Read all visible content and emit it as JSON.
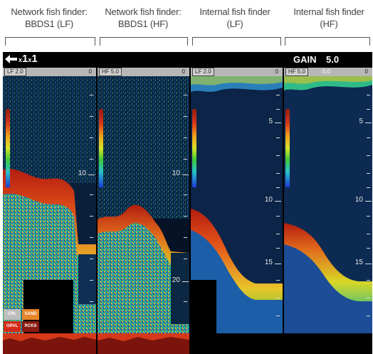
{
  "captions": [
    {
      "line1": "Network fish finder:",
      "line2": "BBDS1 (LF)"
    },
    {
      "line1": "Network fish finder:",
      "line2": "BBDS1 (HF)"
    },
    {
      "line1": "Internal fish finder",
      "line2": "(LF)"
    },
    {
      "line1": "Internal fish finder",
      "line2": "(HF)"
    }
  ],
  "topbar": {
    "zoom_main": "1",
    "zoom_sub": "x",
    "zoom_level": "1",
    "gain_label": "GAIN",
    "gain_value": "5.0",
    "back_icon": "back-arrow-icon"
  },
  "panels": [
    {
      "mode": "LF 2.0",
      "zero": "0",
      "extra": "",
      "depth_labels": [
        "10"
      ]
    },
    {
      "mode": "HF 5.0",
      "zero": "0",
      "extra": "",
      "depth_labels": [
        "10",
        "20"
      ]
    },
    {
      "mode": "LF 2.0",
      "zero": "0",
      "extra": "",
      "depth_labels": [
        "5",
        "10",
        "15"
      ]
    },
    {
      "mode": "HF 5.0",
      "zero": "0",
      "extra": "0.0",
      "depth_labels": [
        "5",
        "10",
        "15"
      ]
    }
  ],
  "legend": {
    "items": [
      "CRL",
      "SAND",
      "GRVL",
      "RCKS"
    ],
    "colors": [
      "#bdbdbd",
      "#e8852a",
      "#d32a1a",
      "#8a1a10"
    ]
  },
  "echo_colors": [
    "#08306b",
    "#1e7bd4",
    "#27c3c9",
    "#3fc83a",
    "#d7e325",
    "#f1a21c",
    "#d8361a",
    "#8f1d12"
  ]
}
